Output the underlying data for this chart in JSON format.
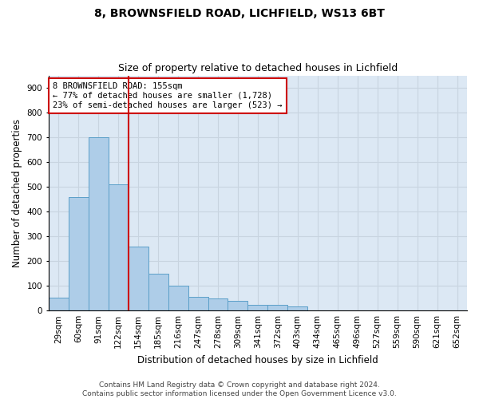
{
  "title_line1": "8, BROWNSFIELD ROAD, LICHFIELD, WS13 6BT",
  "title_line2": "Size of property relative to detached houses in Lichfield",
  "xlabel": "Distribution of detached houses by size in Lichfield",
  "ylabel": "Number of detached properties",
  "categories": [
    "29sqm",
    "60sqm",
    "91sqm",
    "122sqm",
    "154sqm",
    "185sqm",
    "216sqm",
    "247sqm",
    "278sqm",
    "309sqm",
    "341sqm",
    "372sqm",
    "403sqm",
    "434sqm",
    "465sqm",
    "496sqm",
    "527sqm",
    "559sqm",
    "590sqm",
    "621sqm",
    "652sqm"
  ],
  "values": [
    52,
    457,
    700,
    510,
    260,
    148,
    100,
    55,
    50,
    40,
    22,
    22,
    18,
    0,
    0,
    0,
    0,
    0,
    0,
    0,
    0
  ],
  "bar_color": "#aecde8",
  "bar_edge_color": "#5a9fc8",
  "vline_color": "#cc0000",
  "annotation_text": "8 BROWNSFIELD ROAD: 155sqm\n← 77% of detached houses are smaller (1,728)\n23% of semi-detached houses are larger (523) →",
  "annotation_box_color": "#ffffff",
  "annotation_box_edge_color": "#cc0000",
  "ylim": [
    0,
    950
  ],
  "yticks": [
    0,
    100,
    200,
    300,
    400,
    500,
    600,
    700,
    800,
    900
  ],
  "grid_color": "#c8d4e0",
  "background_color": "#dce8f4",
  "footer_line1": "Contains HM Land Registry data © Crown copyright and database right 2024.",
  "footer_line2": "Contains public sector information licensed under the Open Government Licence v3.0.",
  "title_fontsize": 10,
  "subtitle_fontsize": 9,
  "axis_label_fontsize": 8.5,
  "tick_fontsize": 7.5,
  "annotation_fontsize": 7.5,
  "footer_fontsize": 6.5
}
